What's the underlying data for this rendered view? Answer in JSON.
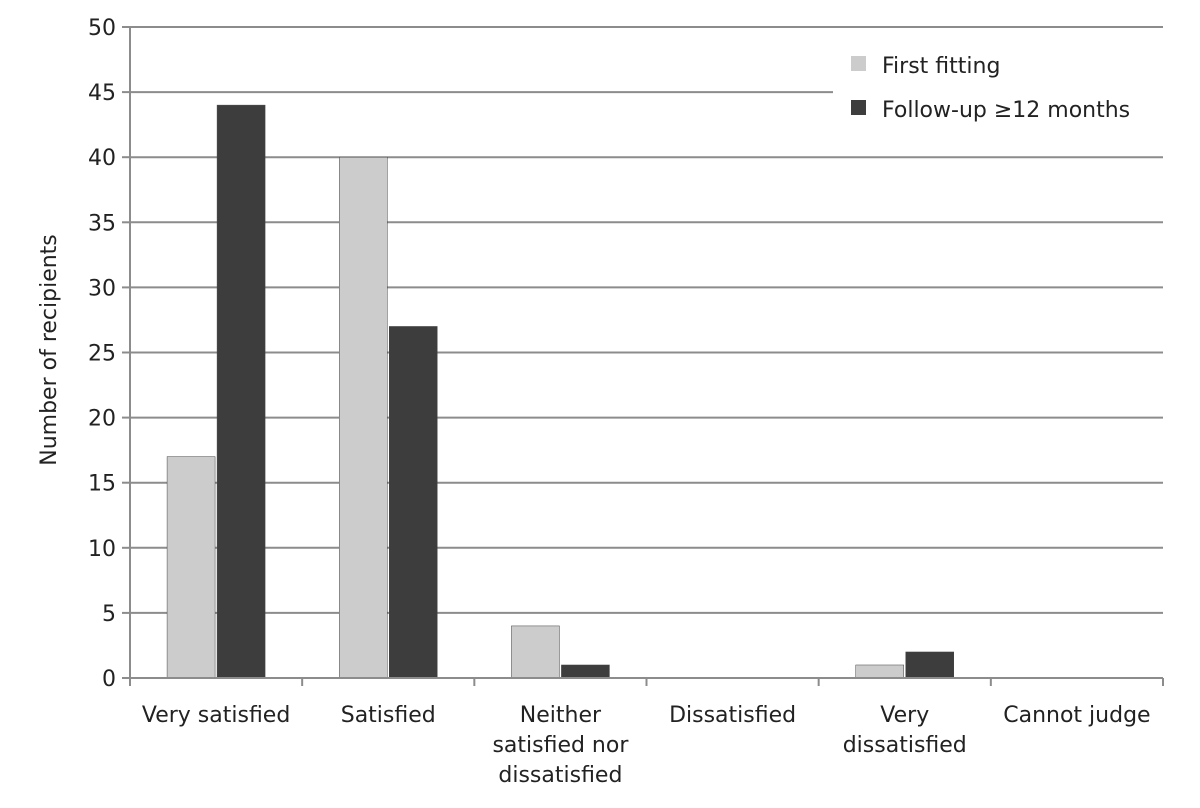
{
  "chart_data": {
    "type": "bar",
    "title": "",
    "xlabel": "",
    "ylabel": "Number of recipients",
    "ylim": [
      0,
      50
    ],
    "yticks": [
      0,
      5,
      10,
      15,
      20,
      25,
      30,
      35,
      40,
      45,
      50
    ],
    "grid": "horizontal",
    "legend_position": "top-right",
    "categories": [
      "Very satisfied",
      "Satisfied",
      "Neither satisfied nor dissatisfied",
      "Dissatisfied",
      "Very dissatisfied",
      "Cannot judge"
    ],
    "category_lines": [
      [
        "Very satisfied"
      ],
      [
        "Satisfied"
      ],
      [
        "Neither",
        "satisfied nor",
        "dissatisfied"
      ],
      [
        "Dissatisfied"
      ],
      [
        "Very",
        "dissatisfied"
      ],
      [
        "Cannot judge"
      ]
    ],
    "series": [
      {
        "name": "First fitting",
        "color": "#cccccc",
        "values": [
          17,
          40,
          4,
          0,
          1,
          0
        ]
      },
      {
        "name": "Follow-up ≥12 months",
        "color": "#3d3d3d",
        "values": [
          44,
          27,
          1,
          0,
          2,
          0
        ]
      }
    ]
  }
}
